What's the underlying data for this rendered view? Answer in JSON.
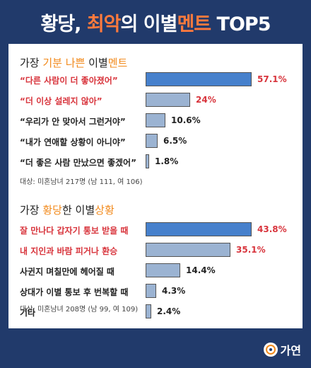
{
  "header": {
    "title_part1": "황당, ",
    "title_highlight": "최악",
    "title_part2": "의 이별",
    "title_highlight2": "멘트",
    "title_part3": " TOP5"
  },
  "section1": {
    "title_part1": "가장 ",
    "title_highlight1": "기분 나쁜",
    "title_part2": " 이별",
    "title_highlight2": "멘트",
    "note": "대상: 미혼남녀 217명 (남 111, 여 106)"
  },
  "section2": {
    "title_part1": "가장 ",
    "title_highlight1": "황당",
    "title_part2": "한 이별",
    "title_highlight2": "상황",
    "note": "대상: 미혼남녀 208명 (남 99, 여 109)"
  },
  "footer": {
    "brand": "가연"
  },
  "chart_data": [
    {
      "type": "bar",
      "orientation": "horizontal",
      "title": "가장 기분 나쁜 이별멘트",
      "categories": [
        "“다른 사람이 더 좋아졌어”",
        "“더 이상 설레지 않아”",
        "“우리가 안 맞아서 그런거야”",
        "“내가 연애할 상황이 아니야”",
        "“더 좋은 사람 만났으면 좋겠어”"
      ],
      "values": [
        57.1,
        24,
        10.6,
        6.5,
        1.8
      ],
      "value_labels": [
        "57.1%",
        "24%",
        "10.6%",
        "6.5%",
        "1.8%"
      ],
      "xlim": [
        0,
        57.1
      ],
      "highlight_color": "#d8343c",
      "top_bar_color": "#4680cc",
      "bar_color": "#9bb3d2"
    },
    {
      "type": "bar",
      "orientation": "horizontal",
      "title": "가장 황당한 이별상황",
      "categories": [
        "잘 만나다 갑자기 통보 받을 때",
        "내 지인과 바람 피거나 환승",
        "사귄지 며칠만에 헤어질 때",
        "상대가 이별 통보 후 번복할 때",
        "기타"
      ],
      "values": [
        43.8,
        35.1,
        14.4,
        4.3,
        2.4
      ],
      "value_labels": [
        "43.8%",
        "35.1%",
        "14.4%",
        "4.3%",
        "2.4%"
      ],
      "xlim": [
        0,
        43.8
      ],
      "highlight_color": "#d8343c",
      "top_bar_color": "#4680cc",
      "bar_color": "#9bb3d2"
    }
  ],
  "colors": {
    "background": "#213a6b",
    "accent_orange": "#ff7a3d",
    "section_orange": "#f28a1c",
    "red": "#d8343c"
  }
}
